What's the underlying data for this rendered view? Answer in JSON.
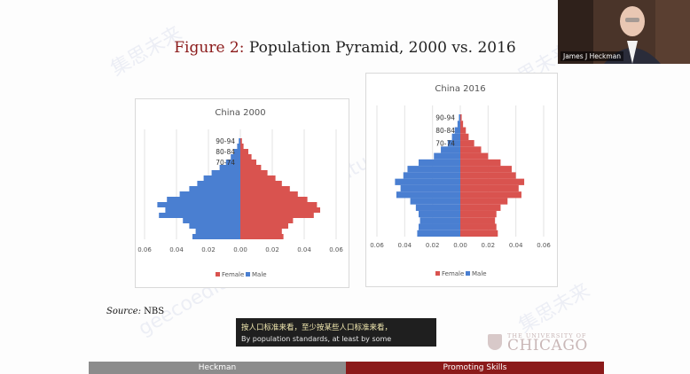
{
  "slide": {
    "title_prefix": "Figure 2:",
    "title_rest": "Population Pyramid, 2000 vs. 2016",
    "source_label": "Source:",
    "source_value": "NBS"
  },
  "video": {
    "participant_name": "James J Heckman"
  },
  "subtitles": {
    "zh": "按人口标准来看，至少按某些人口标准来看，",
    "en": "By population standards, at least by some"
  },
  "footer": {
    "left": "Heckman",
    "right": "Promoting Skills"
  },
  "logo": {
    "small": "THE UNIVERSITY OF",
    "big": "CHICAGO"
  },
  "watermark": {
    "zh": "集思未来",
    "en": "geecoeditu"
  },
  "colors": {
    "female": "#d9534f",
    "male": "#4a7fd1",
    "accent": "#8b1a1a"
  },
  "chart_data": [
    {
      "type": "bar",
      "orientation": "horizontal",
      "title": "China 2000",
      "xlim": [
        -0.06,
        0.06
      ],
      "xticks": [
        "0.06",
        "0.04",
        "0.02",
        "0.00",
        "0.02",
        "0.04",
        "0.06"
      ],
      "ytick_labels": [
        "90-94",
        "80-84",
        "70-74"
      ],
      "legend": [
        "Female",
        "Male"
      ],
      "legend_position": "bottom",
      "male": [
        0.001,
        0.002,
        0.004,
        0.006,
        0.009,
        0.013,
        0.018,
        0.023,
        0.027,
        0.032,
        0.038,
        0.046,
        0.052,
        0.047,
        0.051,
        0.036,
        0.032,
        0.028,
        0.03
      ],
      "female": [
        0.001,
        0.002,
        0.005,
        0.007,
        0.01,
        0.013,
        0.017,
        0.022,
        0.026,
        0.031,
        0.036,
        0.042,
        0.048,
        0.05,
        0.046,
        0.033,
        0.03,
        0.026,
        0.027
      ]
    },
    {
      "type": "bar",
      "orientation": "horizontal",
      "title": "China 2016",
      "xlim": [
        -0.06,
        0.06
      ],
      "xticks": [
        "0.06",
        "0.04",
        "0.02",
        "0.00",
        "0.02",
        "0.04",
        "0.06"
      ],
      "ytick_labels": [
        "90-94",
        "80-84",
        "70-74"
      ],
      "legend": [
        "Female",
        "Male"
      ],
      "legend_position": "bottom",
      "male": [
        0.001,
        0.002,
        0.004,
        0.006,
        0.009,
        0.014,
        0.019,
        0.03,
        0.038,
        0.041,
        0.047,
        0.043,
        0.046,
        0.036,
        0.032,
        0.03,
        0.029,
        0.03,
        0.031
      ],
      "female": [
        0.001,
        0.002,
        0.004,
        0.006,
        0.01,
        0.015,
        0.02,
        0.029,
        0.037,
        0.04,
        0.046,
        0.042,
        0.044,
        0.034,
        0.029,
        0.026,
        0.025,
        0.026,
        0.027
      ]
    }
  ]
}
